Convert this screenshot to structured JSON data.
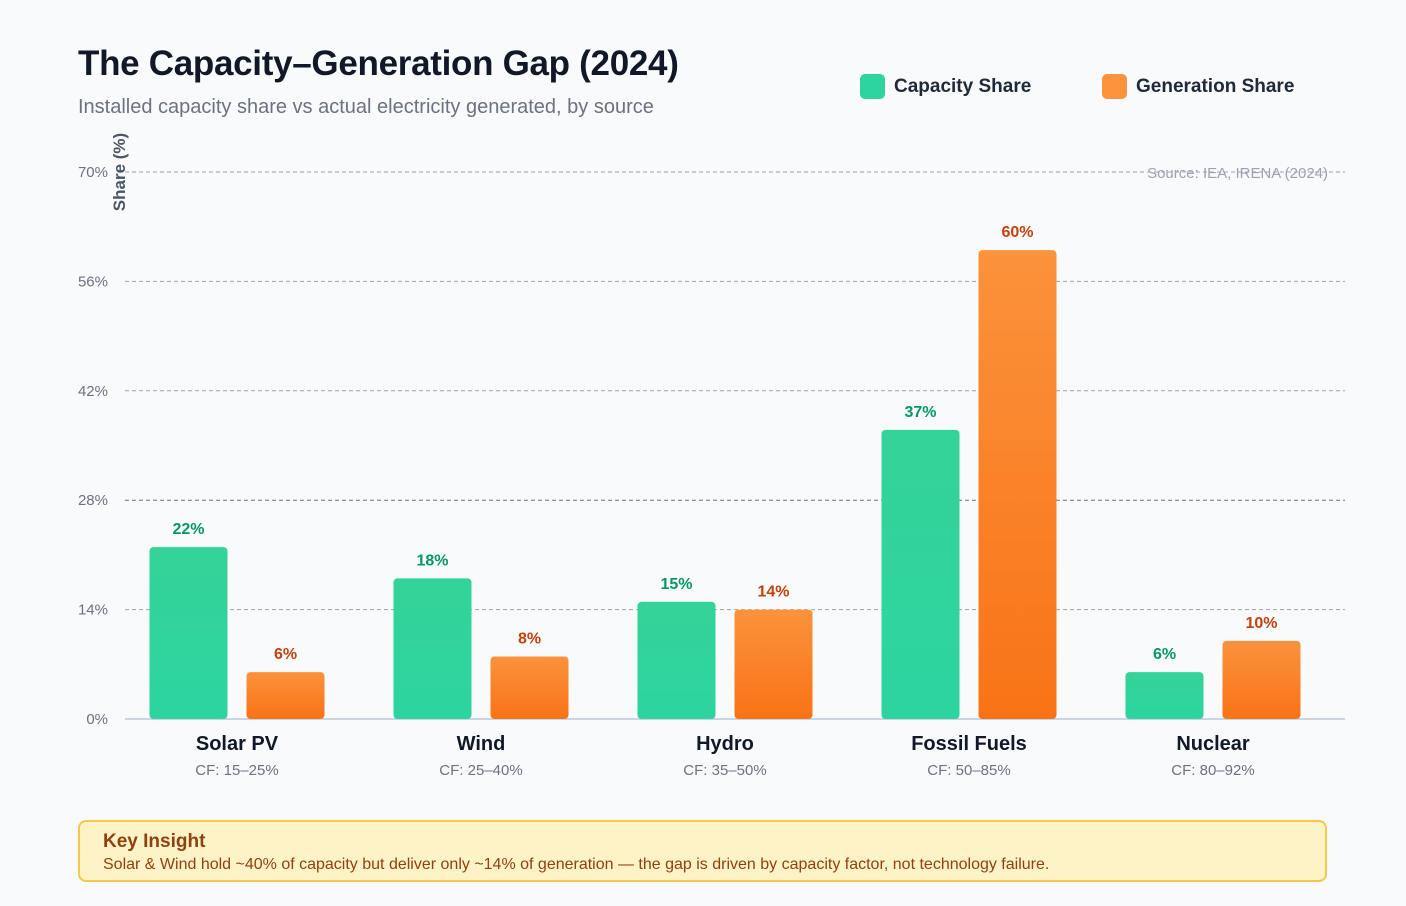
{
  "header": {
    "title": "The Capacity–Generation Gap (2024)",
    "subtitle": "Installed capacity share vs actual electricity generated, by source"
  },
  "source_note": "Source: IEA, IRENA (2024)",
  "insight": {
    "title": "Key Insight",
    "text": "Solar & Wind hold ~40% of capacity but deliver only ~14% of generation — the gap is driven by capacity factor, not technology failure."
  },
  "colors": {
    "capacity": "#2dd4a0",
    "generation": "#fb923c",
    "capacity_label": "#059669",
    "generation_label": "#c2410c"
  },
  "chart_data": {
    "type": "bar",
    "title": "The Capacity–Generation Gap (2024)",
    "subtitle": "Installed capacity share vs actual electricity generated, by source",
    "xlabel": "",
    "ylabel": "Share (%)",
    "ylim": [
      0,
      70
    ],
    "yticks": [
      0,
      14,
      28,
      42,
      56,
      70
    ],
    "ytick_labels": [
      "0%",
      "14%",
      "28%",
      "42%",
      "56%",
      "70%"
    ],
    "grid": true,
    "legend_position": "top-right",
    "categories": [
      "Solar PV",
      "Wind",
      "Hydro",
      "Fossil Fuels",
      "Nuclear"
    ],
    "category_sublabels": [
      "CF: 15–25%",
      "CF: 25–40%",
      "CF: 35–50%",
      "CF: 50–85%",
      "CF: 80–92%"
    ],
    "series": [
      {
        "name": "Capacity Share",
        "values": [
          22,
          18,
          15,
          37,
          6
        ],
        "value_labels": [
          "22%",
          "18%",
          "15%",
          "37%",
          "6%"
        ]
      },
      {
        "name": "Generation Share",
        "values": [
          6,
          8,
          14,
          60,
          10
        ],
        "value_labels": [
          "6%",
          "8%",
          "14%",
          "60%",
          "10%"
        ]
      }
    ]
  }
}
